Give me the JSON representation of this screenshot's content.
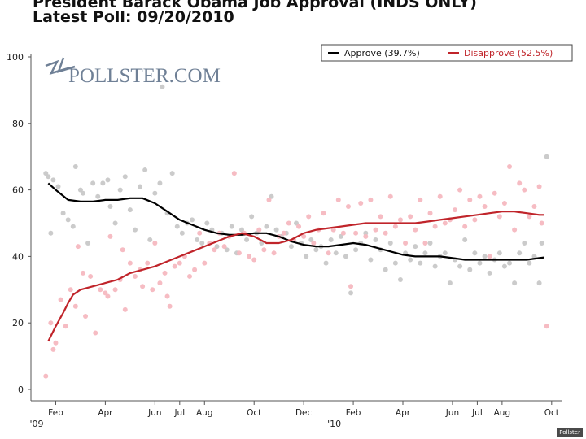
{
  "chart_data": {
    "type": "scatter",
    "title": "President Barack Obama Job Approval (INDS ONLY)",
    "subtitle": "Latest Poll: 09/20/2010",
    "watermark": "POLLSTER.COM",
    "credit": "Pollster",
    "ylim": [
      0,
      100
    ],
    "yticks": [
      0,
      20,
      40,
      60,
      80,
      100
    ],
    "xlim": [
      0,
      21.4
    ],
    "xticks": [
      {
        "x": 1,
        "label": "Feb",
        "year": "'09"
      },
      {
        "x": 3,
        "label": "Apr"
      },
      {
        "x": 5,
        "label": "Jun"
      },
      {
        "x": 6,
        "label": "Jul"
      },
      {
        "x": 7,
        "label": "Aug"
      },
      {
        "x": 9,
        "label": "Oct"
      },
      {
        "x": 11,
        "label": "Dec"
      },
      {
        "x": 13,
        "label": "Feb",
        "year": "'10"
      },
      {
        "x": 15,
        "label": "Apr"
      },
      {
        "x": 17,
        "label": "Jun"
      },
      {
        "x": 18,
        "label": "Jul"
      },
      {
        "x": 19,
        "label": "Aug"
      },
      {
        "x": 21,
        "label": "Oct"
      }
    ],
    "legend_position": "top-right",
    "series": [
      {
        "name": "Approve (39.7%)",
        "color": "#000000",
        "dot_color": "#c8c8c8",
        "trend": [
          [
            0.7,
            62
          ],
          [
            1.0,
            60
          ],
          [
            1.5,
            57
          ],
          [
            2.0,
            56.5
          ],
          [
            2.5,
            56.5
          ],
          [
            3.0,
            57
          ],
          [
            3.5,
            57
          ],
          [
            4.0,
            57.5
          ],
          [
            4.5,
            57.5
          ],
          [
            5.0,
            56
          ],
          [
            5.5,
            53.5
          ],
          [
            6.0,
            51
          ],
          [
            6.5,
            49.5
          ],
          [
            7.0,
            48
          ],
          [
            7.5,
            47
          ],
          [
            8.0,
            46.5
          ],
          [
            8.5,
            46.5
          ],
          [
            9.0,
            47
          ],
          [
            9.5,
            47
          ],
          [
            10.0,
            46
          ],
          [
            10.5,
            44.5
          ],
          [
            11.0,
            43.5
          ],
          [
            11.5,
            43
          ],
          [
            12.0,
            43
          ],
          [
            12.5,
            43.5
          ],
          [
            13.0,
            44
          ],
          [
            13.5,
            43.5
          ],
          [
            14.0,
            42.5
          ],
          [
            14.5,
            41.5
          ],
          [
            15.0,
            40.5
          ],
          [
            15.5,
            40
          ],
          [
            16.0,
            40
          ],
          [
            16.5,
            40
          ],
          [
            17.0,
            39.5
          ],
          [
            17.5,
            39
          ],
          [
            18.0,
            39
          ],
          [
            18.5,
            39
          ],
          [
            19.0,
            39
          ],
          [
            19.5,
            39
          ],
          [
            20.0,
            39
          ],
          [
            20.5,
            39.5
          ],
          [
            20.7,
            39.7
          ]
        ],
        "points": [
          [
            0.6,
            65
          ],
          [
            0.7,
            64
          ],
          [
            0.8,
            47
          ],
          [
            0.9,
            63
          ],
          [
            1.1,
            61
          ],
          [
            1.3,
            53
          ],
          [
            1.5,
            51
          ],
          [
            1.7,
            49
          ],
          [
            1.8,
            67
          ],
          [
            2.0,
            60
          ],
          [
            2.1,
            59
          ],
          [
            2.3,
            44
          ],
          [
            2.5,
            62
          ],
          [
            2.7,
            58
          ],
          [
            2.9,
            62
          ],
          [
            3.1,
            63
          ],
          [
            3.2,
            55
          ],
          [
            3.4,
            50
          ],
          [
            3.6,
            60
          ],
          [
            3.8,
            64
          ],
          [
            4.0,
            54
          ],
          [
            4.2,
            48
          ],
          [
            4.4,
            61
          ],
          [
            4.6,
            66
          ],
          [
            4.8,
            45
          ],
          [
            5.0,
            59
          ],
          [
            5.2,
            62
          ],
          [
            5.3,
            91
          ],
          [
            5.5,
            53
          ],
          [
            5.7,
            65
          ],
          [
            5.9,
            49
          ],
          [
            6.1,
            47
          ],
          [
            6.3,
            50
          ],
          [
            6.5,
            51
          ],
          [
            6.7,
            45
          ],
          [
            6.9,
            44
          ],
          [
            7.1,
            50
          ],
          [
            7.3,
            48
          ],
          [
            7.5,
            43
          ],
          [
            7.7,
            47
          ],
          [
            7.9,
            42
          ],
          [
            8.1,
            49
          ],
          [
            8.3,
            41
          ],
          [
            8.5,
            48
          ],
          [
            8.7,
            45
          ],
          [
            8.9,
            52
          ],
          [
            9.1,
            47
          ],
          [
            9.3,
            44
          ],
          [
            9.5,
            49
          ],
          [
            9.7,
            58
          ],
          [
            9.9,
            48
          ],
          [
            10.1,
            46
          ],
          [
            10.3,
            47
          ],
          [
            10.5,
            43
          ],
          [
            10.7,
            50
          ],
          [
            10.9,
            44
          ],
          [
            11.1,
            40
          ],
          [
            11.3,
            45
          ],
          [
            11.5,
            42
          ],
          [
            11.7,
            43
          ],
          [
            11.9,
            38
          ],
          [
            12.1,
            45
          ],
          [
            12.3,
            41
          ],
          [
            12.5,
            46
          ],
          [
            12.7,
            40
          ],
          [
            12.9,
            29
          ],
          [
            13.1,
            42
          ],
          [
            13.3,
            44
          ],
          [
            13.5,
            47
          ],
          [
            13.7,
            39
          ],
          [
            13.9,
            45
          ],
          [
            14.1,
            42
          ],
          [
            14.3,
            36
          ],
          [
            14.5,
            44
          ],
          [
            14.7,
            38
          ],
          [
            14.9,
            33
          ],
          [
            15.1,
            41
          ],
          [
            15.3,
            39
          ],
          [
            15.5,
            43
          ],
          [
            15.7,
            38
          ],
          [
            15.9,
            41
          ],
          [
            16.1,
            44
          ],
          [
            16.3,
            37
          ],
          [
            16.5,
            40
          ],
          [
            16.7,
            41
          ],
          [
            16.9,
            32
          ],
          [
            17.1,
            39
          ],
          [
            17.3,
            37
          ],
          [
            17.5,
            45
          ],
          [
            17.7,
            36
          ],
          [
            17.9,
            41
          ],
          [
            18.1,
            38
          ],
          [
            18.3,
            40
          ],
          [
            18.5,
            35
          ],
          [
            18.7,
            39
          ],
          [
            18.9,
            41
          ],
          [
            19.1,
            37
          ],
          [
            19.3,
            38
          ],
          [
            19.5,
            32
          ],
          [
            19.7,
            41
          ],
          [
            19.9,
            44
          ],
          [
            20.1,
            38
          ],
          [
            20.3,
            40
          ],
          [
            20.5,
            32
          ],
          [
            20.6,
            44
          ],
          [
            20.8,
            70
          ]
        ]
      },
      {
        "name": "Disapprove (52.5%)",
        "color": "#c0242a",
        "dot_color": "#f5b8c0",
        "trend": [
          [
            0.7,
            14.5
          ],
          [
            1.0,
            19
          ],
          [
            1.3,
            23
          ],
          [
            1.5,
            26
          ],
          [
            1.7,
            28.5
          ],
          [
            2.0,
            30
          ],
          [
            2.5,
            31
          ],
          [
            3.0,
            32
          ],
          [
            3.5,
            33
          ],
          [
            4.0,
            35
          ],
          [
            4.5,
            36
          ],
          [
            5.0,
            37
          ],
          [
            5.5,
            38.5
          ],
          [
            6.0,
            40
          ],
          [
            6.5,
            41.5
          ],
          [
            7.0,
            43
          ],
          [
            7.5,
            44.5
          ],
          [
            8.0,
            46
          ],
          [
            8.5,
            47
          ],
          [
            9.0,
            46
          ],
          [
            9.5,
            44
          ],
          [
            10.0,
            44
          ],
          [
            10.5,
            45
          ],
          [
            11.0,
            47
          ],
          [
            11.5,
            48
          ],
          [
            12.0,
            48.5
          ],
          [
            12.5,
            49
          ],
          [
            13.0,
            49.5
          ],
          [
            13.5,
            50
          ],
          [
            14.0,
            50
          ],
          [
            14.5,
            50
          ],
          [
            15.0,
            50
          ],
          [
            15.5,
            50
          ],
          [
            16.0,
            50.5
          ],
          [
            16.5,
            51
          ],
          [
            17.0,
            51.5
          ],
          [
            17.5,
            52
          ],
          [
            18.0,
            52.5
          ],
          [
            18.5,
            53
          ],
          [
            19.0,
            53.5
          ],
          [
            19.5,
            53.5
          ],
          [
            20.0,
            53
          ],
          [
            20.5,
            52.5
          ],
          [
            20.7,
            52.5
          ]
        ],
        "points": [
          [
            0.6,
            4
          ],
          [
            0.8,
            20
          ],
          [
            0.9,
            12
          ],
          [
            1.0,
            14
          ],
          [
            1.2,
            27
          ],
          [
            1.4,
            19
          ],
          [
            1.6,
            30
          ],
          [
            1.8,
            25
          ],
          [
            1.9,
            43
          ],
          [
            2.1,
            35
          ],
          [
            2.2,
            22
          ],
          [
            2.4,
            34
          ],
          [
            2.6,
            17
          ],
          [
            2.8,
            30
          ],
          [
            3.0,
            29
          ],
          [
            3.1,
            28
          ],
          [
            3.2,
            46
          ],
          [
            3.4,
            30
          ],
          [
            3.6,
            33
          ],
          [
            3.7,
            42
          ],
          [
            3.8,
            24
          ],
          [
            4.0,
            38
          ],
          [
            4.2,
            34
          ],
          [
            4.4,
            36
          ],
          [
            4.5,
            31
          ],
          [
            4.7,
            38
          ],
          [
            4.9,
            30
          ],
          [
            5.0,
            44
          ],
          [
            5.2,
            32
          ],
          [
            5.4,
            35
          ],
          [
            5.5,
            28
          ],
          [
            5.6,
            25
          ],
          [
            5.8,
            37
          ],
          [
            6.0,
            38
          ],
          [
            6.2,
            40
          ],
          [
            6.4,
            34
          ],
          [
            6.6,
            36
          ],
          [
            6.8,
            47
          ],
          [
            7.0,
            38
          ],
          [
            7.2,
            44
          ],
          [
            7.4,
            42
          ],
          [
            7.6,
            47
          ],
          [
            7.8,
            43
          ],
          [
            8.0,
            46
          ],
          [
            8.2,
            65
          ],
          [
            8.4,
            41
          ],
          [
            8.6,
            47
          ],
          [
            8.8,
            40
          ],
          [
            9.0,
            39
          ],
          [
            9.2,
            48
          ],
          [
            9.4,
            42
          ],
          [
            9.6,
            57
          ],
          [
            9.8,
            41
          ],
          [
            10.0,
            46
          ],
          [
            10.2,
            47
          ],
          [
            10.4,
            50
          ],
          [
            10.6,
            45
          ],
          [
            10.8,
            49
          ],
          [
            11.0,
            46
          ],
          [
            11.2,
            52
          ],
          [
            11.4,
            44
          ],
          [
            11.6,
            48
          ],
          [
            11.8,
            53
          ],
          [
            12.0,
            41
          ],
          [
            12.2,
            48
          ],
          [
            12.4,
            57
          ],
          [
            12.6,
            47
          ],
          [
            12.8,
            55
          ],
          [
            12.9,
            31
          ],
          [
            13.1,
            47
          ],
          [
            13.3,
            56
          ],
          [
            13.5,
            46
          ],
          [
            13.7,
            57
          ],
          [
            13.9,
            48
          ],
          [
            14.1,
            52
          ],
          [
            14.3,
            47
          ],
          [
            14.5,
            58
          ],
          [
            14.7,
            49
          ],
          [
            14.9,
            51
          ],
          [
            15.1,
            44
          ],
          [
            15.3,
            52
          ],
          [
            15.5,
            48
          ],
          [
            15.7,
            57
          ],
          [
            15.9,
            44
          ],
          [
            16.1,
            53
          ],
          [
            16.3,
            49
          ],
          [
            16.5,
            58
          ],
          [
            16.7,
            50
          ],
          [
            16.9,
            51
          ],
          [
            17.1,
            54
          ],
          [
            17.3,
            60
          ],
          [
            17.5,
            49
          ],
          [
            17.7,
            57
          ],
          [
            17.9,
            51
          ],
          [
            18.1,
            58
          ],
          [
            18.3,
            55
          ],
          [
            18.5,
            40
          ],
          [
            18.7,
            59
          ],
          [
            18.9,
            52
          ],
          [
            19.1,
            56
          ],
          [
            19.3,
            67
          ],
          [
            19.5,
            48
          ],
          [
            19.7,
            62
          ],
          [
            19.9,
            60
          ],
          [
            20.1,
            52
          ],
          [
            20.3,
            55
          ],
          [
            20.5,
            61
          ],
          [
            20.6,
            50
          ],
          [
            20.8,
            19
          ]
        ]
      }
    ]
  }
}
